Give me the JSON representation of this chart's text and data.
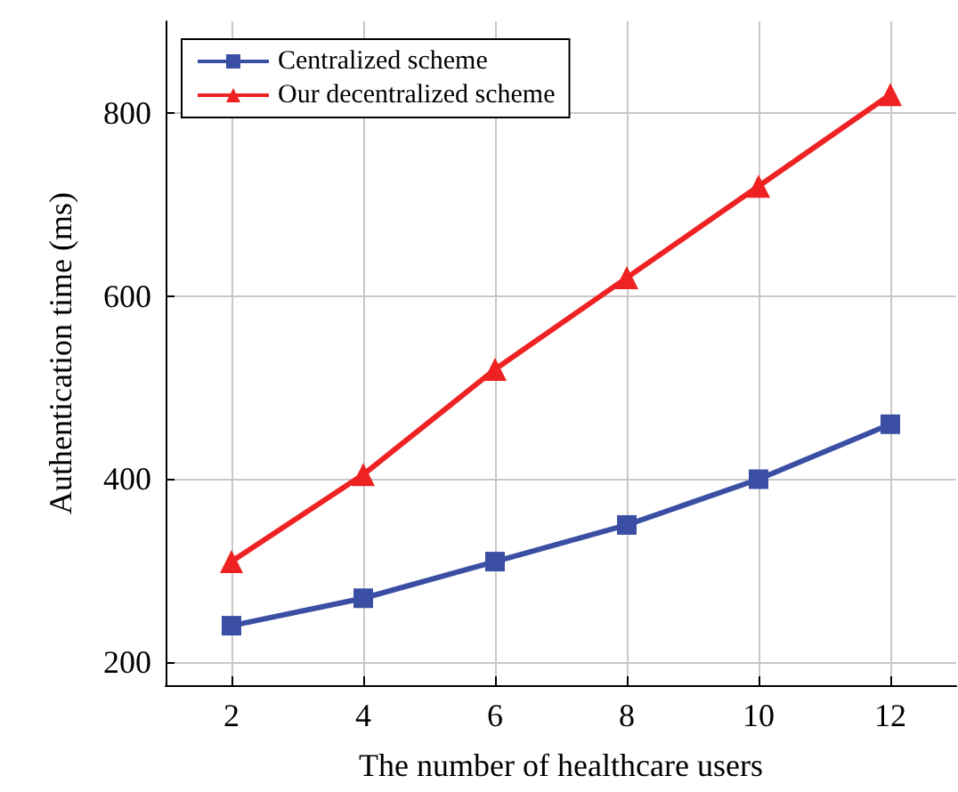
{
  "chart_data": {
    "type": "line",
    "xlabel": "The number of healthcare users",
    "ylabel": "Authentication time (ms)",
    "x": [
      2,
      4,
      6,
      8,
      10,
      12
    ],
    "series": [
      {
        "name": "Centralized scheme",
        "color": "#3a4fa3",
        "marker": "square",
        "values": [
          240,
          270,
          310,
          350,
          400,
          460
        ]
      },
      {
        "name": "Our decentralized scheme",
        "color": "#ee2222",
        "marker": "triangle",
        "values": [
          310,
          405,
          520,
          620,
          720,
          820
        ]
      }
    ],
    "xlim": [
      1,
      13
    ],
    "xticks": [
      2,
      4,
      6,
      8,
      10,
      12
    ],
    "ylim": [
      175,
      900
    ],
    "yticks": [
      200,
      400,
      600,
      800
    ],
    "grid": true,
    "legend": "top left"
  }
}
